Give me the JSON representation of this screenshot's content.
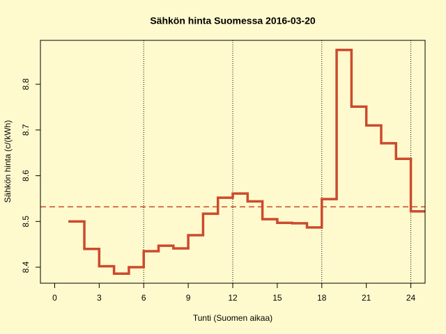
{
  "chart_data": {
    "type": "step",
    "title": "Sähkön hinta Suomessa 2016-03-20",
    "x_label": "Tunti (Suomen aikaa)",
    "y_label": "Sähkön hinta (c/(kWh)",
    "x": [
      1,
      2,
      3,
      4,
      5,
      6,
      7,
      8,
      9,
      10,
      11,
      12,
      13,
      14,
      15,
      16,
      17,
      18,
      19,
      20,
      21,
      22,
      23,
      24
    ],
    "values": [
      8.5,
      8.44,
      8.402,
      8.386,
      8.4,
      8.435,
      8.447,
      8.441,
      8.47,
      8.517,
      8.552,
      8.561,
      8.544,
      8.505,
      8.497,
      8.496,
      8.487,
      8.549,
      8.875,
      8.751,
      8.71,
      8.671,
      8.637,
      8.522
    ],
    "color": "#cc4a2e",
    "mean": 8.532,
    "vlines": [
      6,
      12,
      18,
      24
    ],
    "xlim": [
      -0.96,
      24.96
    ],
    "xticks": [
      0,
      3,
      6,
      9,
      12,
      15,
      18,
      21,
      24
    ],
    "ylim": [
      8.365,
      8.896
    ],
    "yticks": [
      8.4,
      8.5,
      8.6,
      8.7,
      8.8
    ]
  }
}
